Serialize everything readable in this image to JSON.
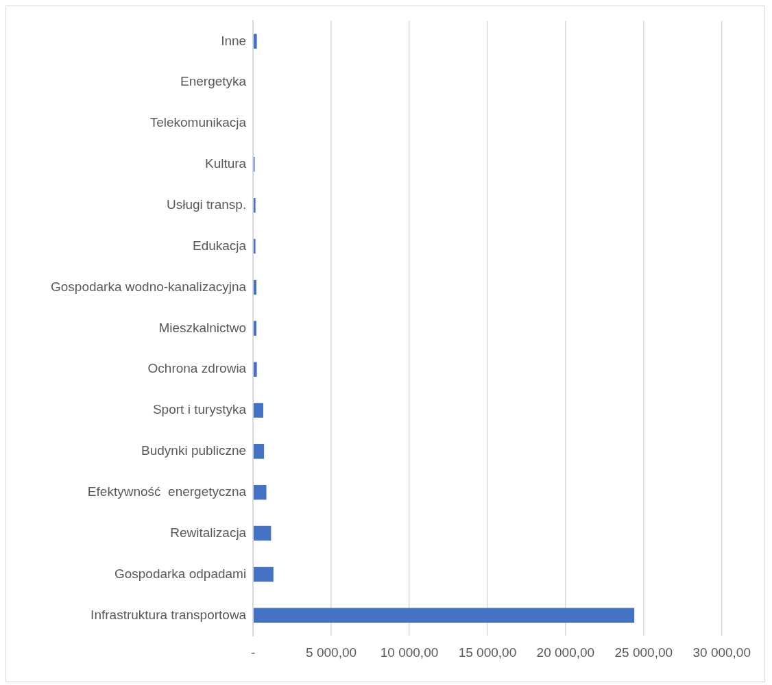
{
  "chart_data": {
    "type": "bar",
    "orientation": "horizontal",
    "categories": [
      "Inne",
      "Energetyka",
      "Telekomunikacja",
      "Kultura",
      "Usługi transp.",
      "Edukacja",
      "Gospodarka wodno-kanalizacyjna",
      "Mieszkalnictwo",
      "Ochrona zdrowia",
      "Sport i turystyka",
      "Budynki publiczne",
      "Efektywność  energetyczna",
      "Rewitalizacja",
      "Gospodarka odpadami",
      "Infrastruktura transportowa"
    ],
    "values": [
      240,
      0,
      0,
      100,
      150,
      150,
      210,
      210,
      240,
      650,
      700,
      850,
      1150,
      1300,
      24400
    ],
    "color": "#4472c4",
    "xlim": [
      0,
      30000
    ],
    "xticks": [
      {
        "value": 0,
        "label": "-"
      },
      {
        "value": 5000,
        "label": "5 000,00"
      },
      {
        "value": 10000,
        "label": "10 000,00"
      },
      {
        "value": 15000,
        "label": "15 000,00"
      },
      {
        "value": 20000,
        "label": "20 000,00"
      },
      {
        "value": 25000,
        "label": "25 000,00"
      },
      {
        "value": 30000,
        "label": "30 000,00"
      }
    ],
    "grid": "x",
    "legend": false
  }
}
